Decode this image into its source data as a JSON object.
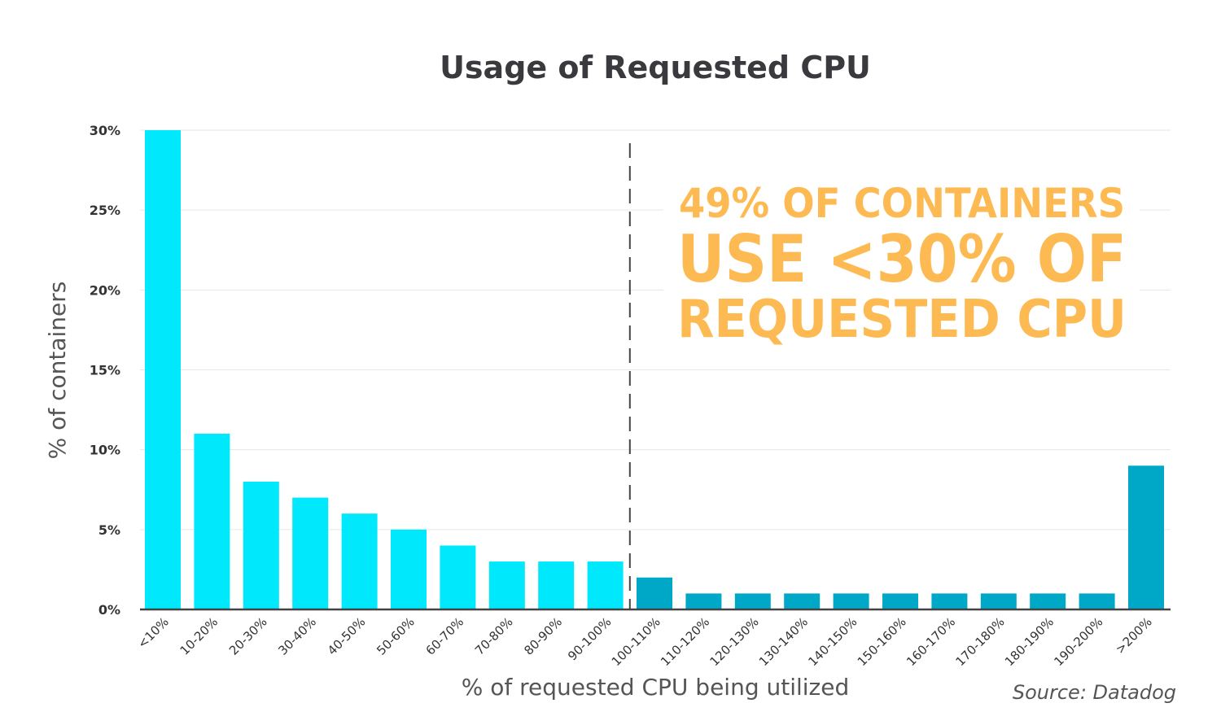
{
  "chart_data": {
    "type": "bar",
    "title": "Usage of Requested CPU",
    "xlabel": "% of requested CPU being utilized",
    "ylabel": "% of containers",
    "ylim": [
      0,
      30
    ],
    "yticks": [
      "0%",
      "5%",
      "10%",
      "15%",
      "20%",
      "25%",
      "30%"
    ],
    "grid": true,
    "categories": [
      "<10%",
      "10-20%",
      "20-30%",
      "30-40%",
      "40-50%",
      "50-60%",
      "60-70%",
      "70-80%",
      "80-90%",
      "90-100%",
      "100-110%",
      "110-120%",
      "120-130%",
      "130-140%",
      "140-150%",
      "150-160%",
      "160-170%",
      "170-180%",
      "180-190%",
      "190-200%",
      ">200%"
    ],
    "values": [
      30,
      11,
      8,
      7,
      6,
      5,
      4,
      3,
      3,
      3,
      2,
      1,
      1,
      1,
      1,
      1,
      1,
      1,
      1,
      1,
      9
    ],
    "colors": {
      "under_100": "#00e8fc",
      "over_100": "#00a8c8"
    },
    "divider_between": [
      "90-100%",
      "100-110%"
    ],
    "annotation": [
      "49% OF CONTAINERS",
      "USE <30% OF",
      "REQUESTED CPU"
    ],
    "source": "Source: Datadog"
  }
}
